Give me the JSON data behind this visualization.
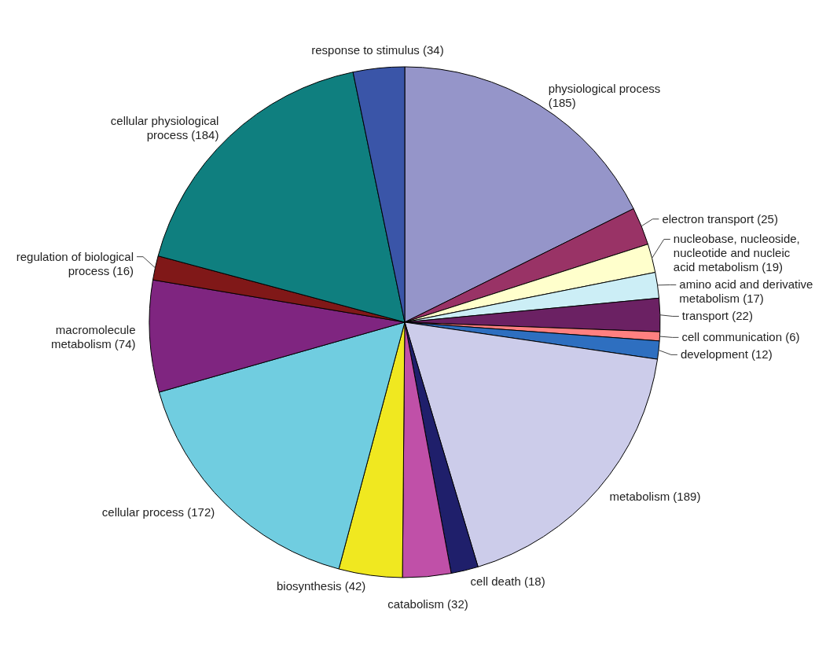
{
  "chart_data": {
    "type": "pie",
    "categories": [
      "physiological process (185)",
      "electron transport (25)",
      "nucleobase, nucleoside, nucleotide and nucleic acid metabolism (19)",
      "amino acid and derivative metabolism (17)",
      "transport (22)",
      "cell communication (6)",
      "development (12)",
      "metabolism (189)",
      "cell death (18)",
      "catabolism (32)",
      "biosynthesis (42)",
      "cellular process (172)",
      "macromolecule metabolism (74)",
      "regulation of biological process (16)",
      "cellular physiological process (184)",
      "response to stimulus (34)"
    ],
    "values": [
      185,
      25,
      19,
      17,
      22,
      6,
      12,
      189,
      18,
      32,
      42,
      172,
      74,
      16,
      184,
      34
    ],
    "colors": [
      "#9595c9",
      "#993366",
      "#ffffcc",
      "#cceef6",
      "#6b2163",
      "#ff8080",
      "#2e6fc0",
      "#ccccea",
      "#1f1f6b",
      "#c050a8",
      "#f0e820",
      "#70cde0",
      "#7f2580",
      "#801818",
      "#0f7f7f",
      "#3a55a8"
    ]
  }
}
